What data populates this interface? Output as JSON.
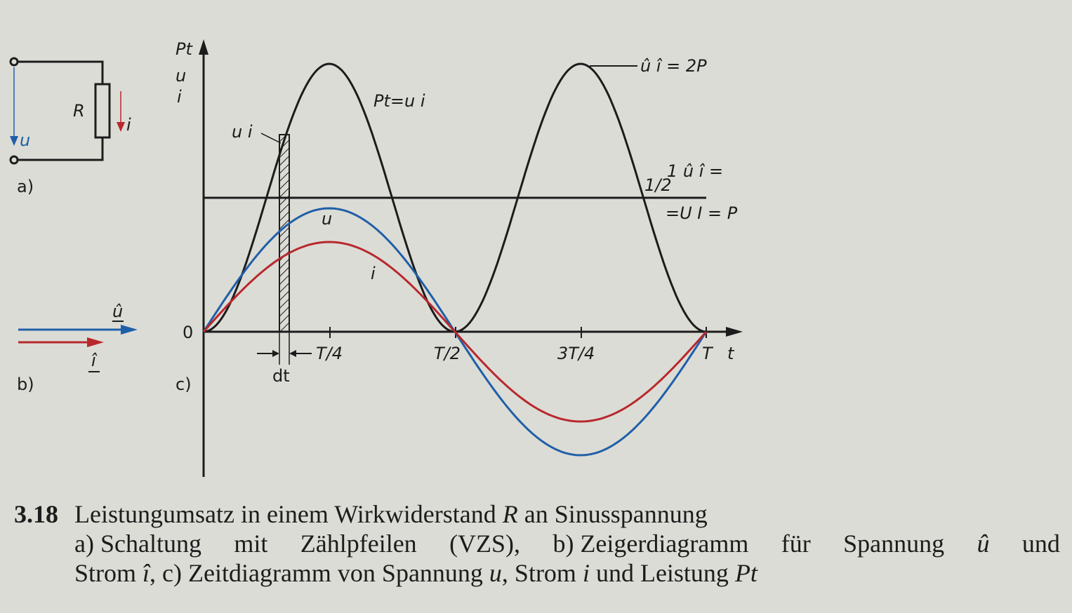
{
  "figure": {
    "part_a": {
      "label": "a)",
      "resistor": "R",
      "voltage_arrow": "u",
      "current_arrow": "i"
    },
    "part_b": {
      "label": "b)",
      "voltage_phasor": "û",
      "current_phasor": "î",
      "colors": {
        "voltage": "#1f5fa8",
        "current": "#b8282d"
      }
    },
    "part_c": {
      "label": "c)",
      "y_axis_labels": [
        "Pt",
        "u",
        "i"
      ],
      "origin_label": "0",
      "x_axis_label": "t",
      "x_ticks": [
        "T/4",
        "T/2",
        "3T/4",
        "T"
      ],
      "dt_label": "dt",
      "strip_label": "u i",
      "curve_labels": {
        "power": "Pt=u i",
        "voltage": "u",
        "current": "i",
        "peak": "û î = 2P",
        "mean_line_top": "1 û î =",
        "mean_line_fraction": "1/2",
        "mean_line_bottom": "=U I = P"
      }
    }
  },
  "chart_data": {
    "type": "line",
    "xlabel": "t",
    "ylabel": "Pt, u, i",
    "x_ticks": [
      "T/4",
      "T/2",
      "3T/4",
      "T"
    ],
    "series": [
      {
        "name": "Pt",
        "color": "#1c1c1c",
        "x": [
          0,
          0.125,
          0.25,
          0.375,
          0.5,
          0.625,
          0.75,
          0.875,
          1.0
        ],
        "values": [
          0,
          0.5,
          1.0,
          0.5,
          0,
          0.5,
          1.0,
          0.5,
          0
        ]
      },
      {
        "name": "u",
        "color": "#1f5fa8",
        "x": [
          0,
          0.125,
          0.25,
          0.375,
          0.5,
          0.625,
          0.75,
          0.875,
          1.0
        ],
        "values": [
          0,
          0.707,
          1.0,
          0.707,
          0,
          -0.707,
          -1.0,
          -0.707,
          0
        ]
      },
      {
        "name": "i",
        "color": "#b8282d",
        "x": [
          0,
          0.125,
          0.25,
          0.375,
          0.5,
          0.625,
          0.75,
          0.875,
          1.0
        ],
        "values": [
          0,
          0.707,
          1.0,
          0.707,
          0,
          -0.707,
          -1.0,
          -0.707,
          0
        ]
      }
    ],
    "mean_line": {
      "label": "=U I = P",
      "value": 0.5
    }
  },
  "caption": {
    "number": "3.18",
    "title": "Leistungumsatz in einem Wirkwiderstand",
    "title_R": "R",
    "title_end": "an Sinusspannung",
    "line2_parts": [
      "a) Schaltung",
      "mit",
      "Zählpfeilen",
      "(VZS),",
      "b) Zeigerdiagramm",
      "für",
      "Spannung",
      "û",
      "und"
    ],
    "line3_a": "Strom",
    "line3_i": "î",
    "line3_b": ", c) Zeitdiagramm von Spannung",
    "line3_u": "u",
    "line3_c": ", Strom",
    "line3_i2": "i",
    "line3_d": "und Leistung",
    "line3_P": "Pt"
  }
}
